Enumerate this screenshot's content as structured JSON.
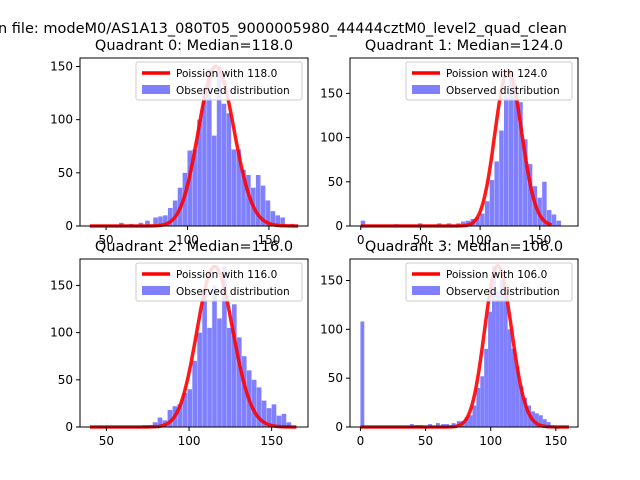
{
  "figure": {
    "suptitle": "n file: modeM0/AS1A13_080T05_9000005980_44444cztM0_level2_quad_clean"
  },
  "colors": {
    "poisson": "#ff0000",
    "observed": "#8080ff"
  },
  "chart_data": [
    {
      "type": "bar",
      "title": "Quadrant 0: Median=118.0",
      "xlim": [
        34,
        174
      ],
      "ylim": [
        0,
        158
      ],
      "xticks": [
        50,
        100,
        150
      ],
      "yticks": [
        0,
        50,
        100,
        150
      ],
      "bin_width": 3.0,
      "legend": {
        "placement": "top-right",
        "entries": [
          "Poission with 118.0",
          "Observed distribution"
        ]
      },
      "series": [
        {
          "name": "Poission with 118.0",
          "kind": "line",
          "median": 118.0
        },
        {
          "name": "Observed distribution",
          "kind": "histogram",
          "bins": [
            [
              58,
              3
            ],
            [
              64,
              2
            ],
            [
              70,
              3
            ],
            [
              74,
              5
            ],
            [
              79,
              8
            ],
            [
              82,
              9
            ],
            [
              85,
              10
            ],
            [
              88,
              17
            ],
            [
              91,
              24
            ],
            [
              94,
              36
            ],
            [
              97,
              50
            ],
            [
              100,
              71
            ],
            [
              103,
              72
            ],
            [
              106,
              100
            ],
            [
              109,
              128
            ],
            [
              112,
              148
            ],
            [
              115,
              85
            ],
            [
              118,
              150
            ],
            [
              121,
              115
            ],
            [
              124,
              106
            ],
            [
              127,
              72
            ],
            [
              130,
              72
            ],
            [
              133,
              53
            ],
            [
              136,
              48
            ],
            [
              139,
              36
            ],
            [
              142,
              48
            ],
            [
              145,
              38
            ],
            [
              148,
              24
            ],
            [
              151,
              14
            ],
            [
              154,
              10
            ],
            [
              157,
              8
            ],
            [
              163,
              2
            ]
          ]
        }
      ]
    },
    {
      "type": "bar",
      "title": "Quadrant 1: Median=124.0",
      "xlim": [
        -9,
        182
      ],
      "ylim": [
        0,
        190
      ],
      "xticks": [
        0,
        50,
        100,
        150
      ],
      "yticks": [
        0,
        50,
        100,
        150
      ],
      "bin_width": 4.0,
      "legend": {
        "placement": "top-right",
        "entries": [
          "Poission with 124.0",
          "Observed distribution"
        ]
      },
      "series": [
        {
          "name": "Poission with 124.0",
          "kind": "line",
          "median": 124.0
        },
        {
          "name": "Observed distribution",
          "kind": "histogram",
          "bins": [
            [
              0,
              6
            ],
            [
              28,
              2
            ],
            [
              48,
              3
            ],
            [
              64,
              3
            ],
            [
              72,
              3
            ],
            [
              80,
              3
            ],
            [
              84,
              5
            ],
            [
              88,
              6
            ],
            [
              92,
              8
            ],
            [
              96,
              10
            ],
            [
              100,
              14
            ],
            [
              104,
              28
            ],
            [
              108,
              52
            ],
            [
              112,
              73
            ],
            [
              116,
              108
            ],
            [
              120,
              148
            ],
            [
              124,
              175
            ],
            [
              128,
              160
            ],
            [
              132,
              140
            ],
            [
              136,
              98
            ],
            [
              140,
              70
            ],
            [
              144,
              45
            ],
            [
              148,
              32
            ],
            [
              152,
              50
            ],
            [
              156,
              18
            ],
            [
              160,
              13
            ],
            [
              164,
              6
            ]
          ]
        }
      ]
    },
    {
      "type": "bar",
      "title": "Quadrant 2: Median=116.0",
      "xlim": [
        34,
        172
      ],
      "ylim": [
        0,
        178
      ],
      "xticks": [
        50,
        100,
        150
      ],
      "yticks": [
        0,
        50,
        100,
        150
      ],
      "bin_width": 3.0,
      "legend": {
        "placement": "top-right",
        "entries": [
          "Poission with 116.0",
          "Observed distribution"
        ]
      },
      "series": [
        {
          "name": "Poission with 116.0",
          "kind": "line",
          "median": 116.0
        },
        {
          "name": "Observed distribution",
          "kind": "histogram",
          "bins": [
            [
              72,
              2
            ],
            [
              75,
              2
            ],
            [
              78,
              5
            ],
            [
              81,
              10
            ],
            [
              84,
              7
            ],
            [
              87,
              18
            ],
            [
              90,
              22
            ],
            [
              93,
              24
            ],
            [
              96,
              36
            ],
            [
              99,
              40
            ],
            [
              102,
              70
            ],
            [
              105,
              100
            ],
            [
              108,
              145
            ],
            [
              111,
              105
            ],
            [
              114,
              150
            ],
            [
              117,
              115
            ],
            [
              120,
              170
            ],
            [
              123,
              105
            ],
            [
              126,
              130
            ],
            [
              129,
              95
            ],
            [
              132,
              75
            ],
            [
              135,
              60
            ],
            [
              138,
              50
            ],
            [
              141,
              42
            ],
            [
              144,
              28
            ],
            [
              147,
              20
            ],
            [
              150,
              24
            ],
            [
              153,
              12
            ],
            [
              156,
              14
            ],
            [
              159,
              5
            ]
          ]
        }
      ]
    },
    {
      "type": "bar",
      "title": "Quadrant 3: Median=106.0",
      "xlim": [
        -8,
        167
      ],
      "ylim": [
        0,
        172
      ],
      "xticks": [
        0,
        50,
        100,
        150
      ],
      "yticks": [
        0,
        50,
        100,
        150
      ],
      "bin_width": 3.2,
      "legend": {
        "placement": "top-right",
        "entries": [
          "Poission with 106.0",
          "Observed distribution"
        ]
      },
      "series": [
        {
          "name": "Poission with 106.0",
          "kind": "line",
          "median": 106.0
        },
        {
          "name": "Observed distribution",
          "kind": "histogram",
          "bins": [
            [
              0,
              108
            ],
            [
              38,
              3
            ],
            [
              42,
              2
            ],
            [
              45,
              2
            ],
            [
              52,
              3
            ],
            [
              58,
              4
            ],
            [
              62,
              3
            ],
            [
              65,
              3
            ],
            [
              70,
              4
            ],
            [
              74,
              6
            ],
            [
              77,
              6
            ],
            [
              80,
              10
            ],
            [
              83,
              12
            ],
            [
              86,
              22
            ],
            [
              89,
              40
            ],
            [
              92,
              52
            ],
            [
              95,
              80
            ],
            [
              98,
              118
            ],
            [
              101,
              165
            ],
            [
              104,
              140
            ],
            [
              107,
              150
            ],
            [
              110,
              140
            ],
            [
              113,
              100
            ],
            [
              116,
              80
            ],
            [
              119,
              62
            ],
            [
              122,
              42
            ],
            [
              125,
              30
            ],
            [
              128,
              22
            ],
            [
              131,
              16
            ],
            [
              134,
              14
            ],
            [
              137,
              12
            ],
            [
              140,
              8
            ],
            [
              143,
              5
            ]
          ]
        }
      ]
    }
  ]
}
